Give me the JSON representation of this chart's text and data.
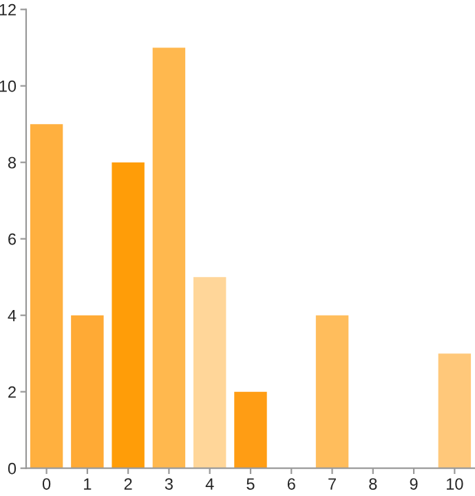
{
  "chart_data": {
    "type": "bar",
    "categories": [
      "0",
      "1",
      "2",
      "3",
      "4",
      "5",
      "6",
      "7",
      "8",
      "9",
      "10"
    ],
    "values": [
      9,
      4,
      8,
      11,
      5,
      2,
      0,
      4,
      0,
      0,
      3
    ],
    "colors": [
      "#ffb03f",
      "#ffaa35",
      "#ff9d08",
      "#ffb84e",
      "#ffd699",
      "#ff9d14",
      "#ffb03f",
      "#ffbd5c",
      "#ffb03f",
      "#ffb03f",
      "#ffc87a"
    ],
    "ylim": [
      0,
      12
    ],
    "yticks": [
      0,
      2,
      4,
      6,
      8,
      10,
      12
    ],
    "grid": false
  }
}
